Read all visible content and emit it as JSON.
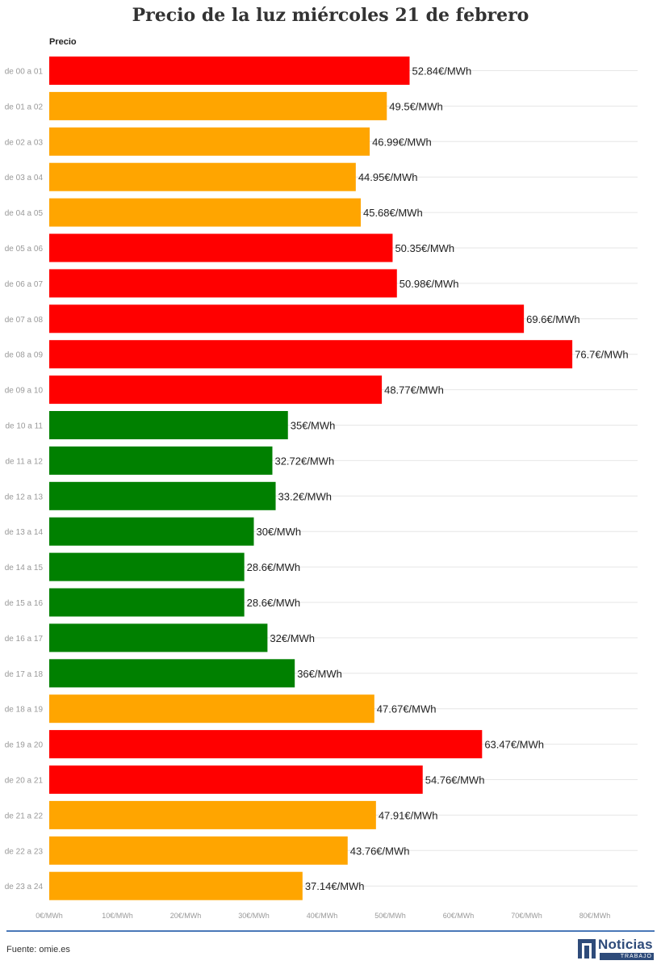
{
  "page": {
    "title": "Precio de la luz miércoles 21 de febrero",
    "source": "Fuente: omie.es"
  },
  "logo": {
    "name": "Noticias",
    "subtitle": "TRABAJO"
  },
  "chart_data": {
    "type": "bar",
    "orientation": "horizontal",
    "title": "Precio de la luz miércoles 21 de febrero",
    "series_label": "Precio",
    "categories": [
      "de 00 a 01",
      "de 01 a 02",
      "de 02 a 03",
      "de 03 a 04",
      "de 04 a 05",
      "de 05 a 06",
      "de 06 a 07",
      "de 07 a 08",
      "de 08 a 09",
      "de 09 a 10",
      "de 10 a 11",
      "de 11 a 12",
      "de 12 a 13",
      "de 13 a 14",
      "de 14 a 15",
      "de 15 a 16",
      "de 16 a 17",
      "de 17 a 18",
      "de 18 a 19",
      "de 19 a 20",
      "de 20 a 21",
      "de 21 a 22",
      "de 22 a 23",
      "de 23 a 24"
    ],
    "values": [
      52.84,
      49.5,
      46.99,
      44.95,
      45.68,
      50.35,
      50.98,
      69.6,
      76.7,
      48.77,
      35,
      32.72,
      33.2,
      30,
      28.6,
      28.6,
      32,
      36,
      47.67,
      63.47,
      54.76,
      47.91,
      43.76,
      37.14
    ],
    "labels": [
      "52.84€/MWh",
      "49.5€/MWh",
      "46.99€/MWh",
      "44.95€/MWh",
      "45.68€/MWh",
      "50.35€/MWh",
      "50.98€/MWh",
      "69.6€/MWh",
      "76.7€/MWh",
      "48.77€/MWh",
      "35€/MWh",
      "32.72€/MWh",
      "33.2€/MWh",
      "30€/MWh",
      "28.6€/MWh",
      "28.6€/MWh",
      "32€/MWh",
      "36€/MWh",
      "47.67€/MWh",
      "63.47€/MWh",
      "54.76€/MWh",
      "47.91€/MWh",
      "43.76€/MWh",
      "37.14€/MWh"
    ],
    "bar_colors": [
      "#ff0000",
      "#ffa500",
      "#ffa500",
      "#ffa500",
      "#ffa500",
      "#ff0000",
      "#ff0000",
      "#ff0000",
      "#ff0000",
      "#ff0000",
      "#008000",
      "#008000",
      "#008000",
      "#008000",
      "#008000",
      "#008000",
      "#008000",
      "#008000",
      "#ffa500",
      "#ff0000",
      "#ff0000",
      "#ffa500",
      "#ffa500",
      "#ffa500"
    ],
    "x_ticks": [
      0,
      10,
      20,
      30,
      40,
      50,
      60,
      70,
      80
    ],
    "x_tick_labels": [
      "0€/MWh",
      "10€/MWh",
      "20€/MWh",
      "30€/MWh",
      "40€/MWh",
      "50€/MWh",
      "60€/MWh",
      "70€/MWh",
      "80€/MWh"
    ],
    "xlim": [
      0,
      80
    ],
    "grid": true
  }
}
